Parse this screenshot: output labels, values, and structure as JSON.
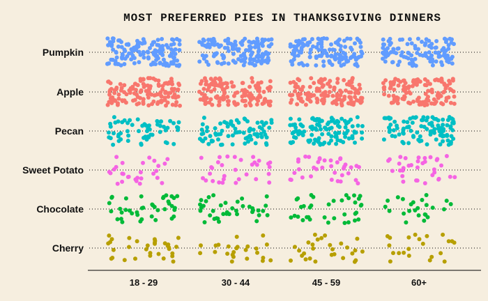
{
  "chart_data": {
    "type": "scatter",
    "subtype": "jitter-strip",
    "title": "MOST PREFERRED PIES IN THANKSGIVING DINNERS",
    "xlabel": "",
    "ylabel": "",
    "x_categories": [
      "18 - 29",
      "30 - 44",
      "45 - 59",
      "60+"
    ],
    "y_categories": [
      "Pumpkin",
      "Apple",
      "Pecan",
      "Sweet Potato",
      "Chocolate",
      "Cherry"
    ],
    "grid": "dotted horizontal lines per row",
    "legend": "none",
    "series": [
      {
        "category": "Pumpkin",
        "color": "#619cff",
        "counts": [
          140,
          140,
          135,
          120
        ]
      },
      {
        "category": "Apple",
        "color": "#f8766d",
        "counts": [
          130,
          135,
          130,
          125
        ]
      },
      {
        "category": "Pecan",
        "color": "#00bfc4",
        "counts": [
          60,
          80,
          110,
          100
        ]
      },
      {
        "category": "Sweet Potato",
        "color": "#f564e3",
        "counts": [
          28,
          32,
          36,
          34
        ]
      },
      {
        "category": "Chocolate",
        "color": "#00ba38",
        "counts": [
          40,
          38,
          36,
          24
        ]
      },
      {
        "category": "Cherry",
        "color": "#b79f00",
        "counts": [
          32,
          24,
          28,
          22
        ]
      }
    ]
  }
}
